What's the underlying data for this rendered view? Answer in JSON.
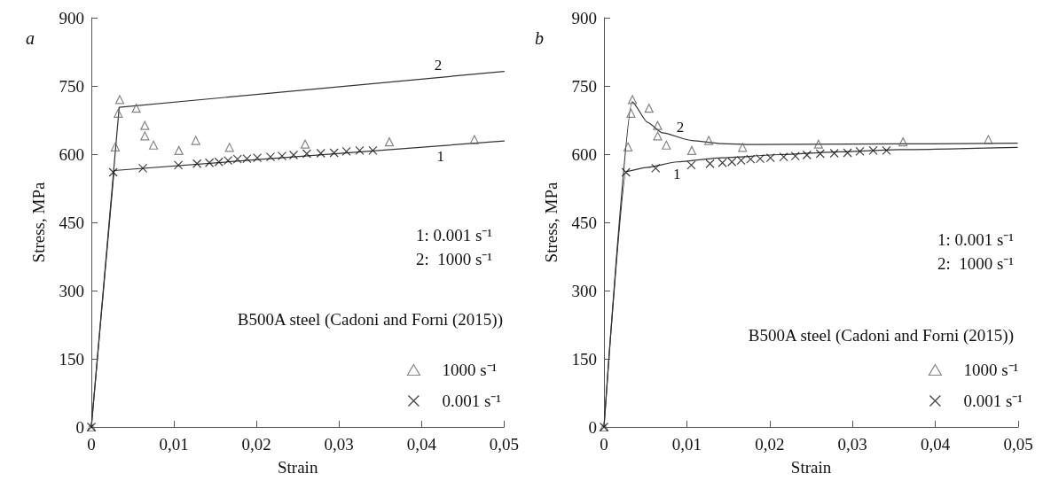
{
  "chart_data": [
    {
      "type": "scatter",
      "title": "a",
      "xlabel": "Strain",
      "ylabel": "Stress, MPa",
      "xlim": [
        0,
        0.05
      ],
      "ylim": [
        0,
        900
      ],
      "xticks": [
        0,
        {
          "value": 0.01,
          "label": "0,01"
        },
        {
          "value": 0.02,
          "label": "0,02"
        },
        {
          "value": 0.03,
          "label": "0,03"
        },
        {
          "value": 0.04,
          "label": "0,04"
        },
        {
          "value": 0.05,
          "label": "0,05"
        }
      ],
      "yticks": [
        0,
        150,
        300,
        450,
        600,
        750,
        900
      ],
      "grid": false,
      "legend": "bottom right",
      "annotations": [
        "1: 0.001 s⁻¹",
        "2:  1000 s⁻¹",
        "B500A steel (Cadoni and Forni (2015))"
      ],
      "series": [
        {
          "name": "2",
          "type": "line",
          "marker": "none",
          "color": "#333333",
          "x": [
            0,
            0.00337,
            0.05
          ],
          "values": [
            0,
            703,
            782
          ]
        },
        {
          "name": "1",
          "type": "line",
          "marker": "none",
          "color": "#333333",
          "x": [
            0,
            0.00275,
            0.05
          ],
          "values": [
            0,
            564,
            629
          ]
        },
        {
          "name": "1000 s⁻¹",
          "marker": "triangle",
          "color": "#666666",
          "x": [
            0,
            0.0029,
            0.00326,
            0.00344,
            0.00544,
            0.00648,
            0.00648,
            0.00753,
            0.0106,
            0.01265,
            0.01673,
            0.0259,
            0.0361,
            0.0464
          ],
          "values": [
            0,
            616,
            690,
            720,
            701,
            663,
            640,
            620,
            608,
            630,
            615,
            622,
            627,
            632
          ]
        },
        {
          "name": "0.001 s⁻¹",
          "marker": "cross",
          "color": "#111111",
          "x": [
            0,
            0.00265,
            0.00624,
            0.01054,
            0.0128,
            0.0143,
            0.01544,
            0.01656,
            0.0177,
            0.01885,
            0.0201,
            0.0217,
            0.0231,
            0.0245,
            0.0261,
            0.0278,
            0.0294,
            0.0309,
            0.0325,
            0.0341
          ],
          "values": [
            0,
            560,
            569,
            576,
            579,
            581,
            583,
            586,
            589,
            590,
            592,
            594,
            596,
            598,
            601,
            602,
            603,
            606,
            608,
            608
          ]
        }
      ]
    },
    {
      "type": "scatter",
      "title": "b",
      "xlabel": "Strain",
      "ylabel": "Stress, MPa",
      "xlim": [
        0,
        0.05
      ],
      "ylim": [
        0,
        900
      ],
      "xticks": [
        0,
        {
          "value": 0.01,
          "label": "0,01"
        },
        {
          "value": 0.02,
          "label": "0,02"
        },
        {
          "value": 0.03,
          "label": "0,03"
        },
        {
          "value": 0.04,
          "label": "0,04"
        },
        {
          "value": 0.05,
          "label": "0,05"
        }
      ],
      "yticks": [
        0,
        150,
        300,
        450,
        600,
        750,
        900
      ],
      "grid": false,
      "legend": "bottom right",
      "annotations": [
        "1: 0.001 s⁻¹",
        "2:  1000 s⁻¹",
        "B500A steel (Cadoni and Forni (2015))"
      ],
      "series": [
        {
          "name": "2",
          "type": "line",
          "marker": "none",
          "color": "#333333",
          "x": [
            0,
            0.0034,
            0.00526,
            0.00704,
            0.0106,
            0.0142,
            0.0178,
            0.03,
            0.0499
          ],
          "values": [
            0,
            715,
            670,
            647,
            630,
            623,
            621,
            622,
            624
          ]
        },
        {
          "name": "1",
          "type": "line",
          "marker": "none",
          "color": "#333333",
          "x": [
            0,
            0.00269,
            0.00526,
            0.0088,
            0.0142,
            0.0213,
            0.0285,
            0.0356,
            0.0499
          ],
          "values": [
            0,
            562,
            571,
            583,
            592,
            599,
            605,
            610,
            615
          ]
        },
        {
          "name": "1000 s⁻¹",
          "marker": "triangle",
          "color": "#666666",
          "x": [
            0,
            0.0029,
            0.00326,
            0.00344,
            0.00544,
            0.00648,
            0.00648,
            0.00753,
            0.0106,
            0.01265,
            0.01673,
            0.0259,
            0.0361,
            0.0464
          ],
          "values": [
            0,
            616,
            690,
            720,
            701,
            663,
            640,
            620,
            608,
            630,
            615,
            622,
            627,
            632
          ]
        },
        {
          "name": "0.001 s⁻¹",
          "marker": "cross",
          "color": "#111111",
          "x": [
            0,
            0.00265,
            0.00624,
            0.01054,
            0.0128,
            0.0143,
            0.01544,
            0.01656,
            0.0177,
            0.01885,
            0.0201,
            0.0217,
            0.0231,
            0.0245,
            0.0261,
            0.0278,
            0.0294,
            0.0309,
            0.0325,
            0.0341
          ],
          "values": [
            0,
            560,
            569,
            576,
            579,
            581,
            583,
            586,
            589,
            590,
            592,
            594,
            596,
            598,
            601,
            602,
            603,
            606,
            608,
            608
          ]
        }
      ]
    }
  ]
}
